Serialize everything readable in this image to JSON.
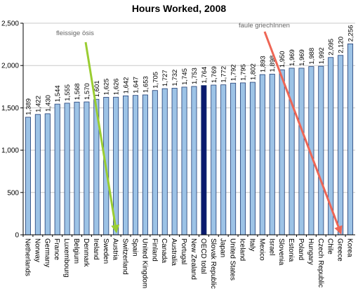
{
  "chart_data": {
    "type": "bar",
    "title": "Hours Worked, 2008",
    "xlabel": "",
    "ylabel": "",
    "ylim": [
      0,
      2500
    ],
    "yticks": [
      0,
      500,
      1000,
      1500,
      2000,
      2500
    ],
    "ytick_labels": [
      "0",
      "500",
      "1,000",
      "1,500",
      "2,000",
      "2,500"
    ],
    "grid": true,
    "legend": "none",
    "categories": [
      "Netherlands",
      "Norway",
      "Germany",
      "France",
      "Luxembourg",
      "Belgium",
      "Denmark",
      "Ireland",
      "Sweden",
      "Austria",
      "Switzerland",
      "Spain",
      "United Kingdom",
      "Finland",
      "Canada",
      "Australia",
      "Portugal",
      "New Zealand",
      "OECD total",
      "Slovak Republic",
      "Japan",
      "United States",
      "Iceland",
      "Italy",
      "Mexico",
      "Israel",
      "Slovenia",
      "Estonia",
      "Poland",
      "Hungary",
      "Czech Republic",
      "Chile",
      "Greece",
      "Korea"
    ],
    "values": [
      1389,
      1422,
      1430,
      1544,
      1555,
      1568,
      1570,
      1601,
      1625,
      1626,
      1642,
      1647,
      1653,
      1705,
      1727,
      1732,
      1745,
      1753,
      1764,
      1769,
      1772,
      1792,
      1795,
      1802,
      1893,
      1898,
      1950,
      1969,
      1969,
      1988,
      1992,
      2095,
      2120,
      2256
    ],
    "value_labels": [
      "1,389",
      "1,422",
      "1,430",
      "1,544",
      "1,555",
      "1,568",
      "1,570",
      "1,601",
      "1,625",
      "1,626",
      "1,642",
      "1,647",
      "1,653",
      "1,705",
      "1,727",
      "1,732",
      "1,745",
      "1,753",
      "1,764",
      "1,769",
      "1,772",
      "1,792",
      "1,795",
      "1,802",
      "1,893",
      "1,898",
      "1,950",
      "1,969",
      "1,969",
      "1,988",
      "1,992",
      "2,095",
      "2,120",
      "2,256"
    ],
    "highlight_category": "OECD total",
    "colors": {
      "bar_fill": "#9dc3e6",
      "bar_stroke": "#1f3b73",
      "highlight_fill": "#0a1a6e",
      "grid": "#c8c8c8"
    },
    "annotations": [
      {
        "text": "fleissige ösis",
        "target_category": "Austria",
        "arrow_color": "#9acd32"
      },
      {
        "text": "faule griechInnen",
        "target_category": "Greece",
        "arrow_color": "#ee6655"
      }
    ]
  }
}
